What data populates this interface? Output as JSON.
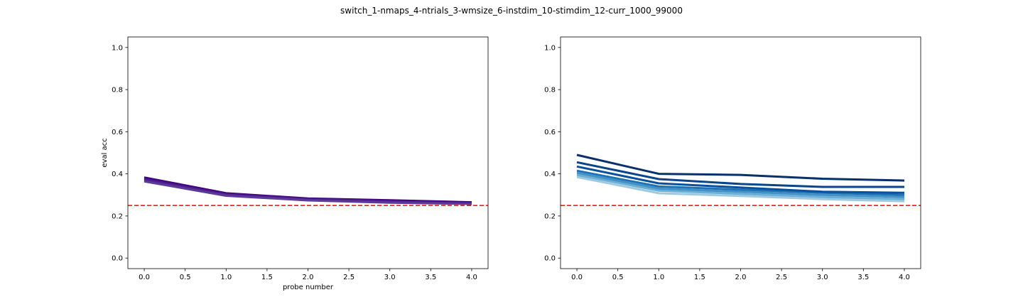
{
  "figure": {
    "title": "switch_1-nmaps_4-ntrials_3-wmsize_6-instdim_10-stimdim_12-curr_1000_99000"
  },
  "chart_data": [
    {
      "type": "line",
      "title": "",
      "xlabel": "probe number",
      "ylabel": "eval acc",
      "xlim": [
        -0.2,
        4.2
      ],
      "ylim": [
        -0.05,
        1.05
      ],
      "xticks": [
        0.0,
        0.5,
        1.0,
        1.5,
        2.0,
        2.5,
        3.0,
        3.5,
        4.0
      ],
      "xtick_labels": [
        "0.0",
        "0.5",
        "1.0",
        "1.5",
        "2.0",
        "2.5",
        "3.0",
        "3.5",
        "4.0"
      ],
      "yticks": [
        0.0,
        0.2,
        0.4,
        0.6,
        0.8,
        1.0
      ],
      "ytick_labels": [
        "0.0",
        "0.2",
        "0.4",
        "0.6",
        "0.8",
        "1.0"
      ],
      "grid": false,
      "reference_line": {
        "y": 0.25,
        "color": "#ff0000",
        "style": "dashed"
      },
      "x": [
        0,
        1,
        2,
        3,
        4
      ],
      "series": [
        {
          "color": "#3f007d",
          "values": [
            0.383,
            0.308,
            0.283,
            0.275,
            0.265
          ]
        },
        {
          "color": "#460c85",
          "values": [
            0.378,
            0.305,
            0.281,
            0.272,
            0.262
          ]
        },
        {
          "color": "#4d1a8d",
          "values": [
            0.373,
            0.302,
            0.279,
            0.269,
            0.26
          ]
        },
        {
          "color": "#542794",
          "values": [
            0.368,
            0.299,
            0.276,
            0.266,
            0.259
          ]
        },
        {
          "color": "#5b3a98",
          "values": [
            0.364,
            0.296,
            0.274,
            0.263,
            0.257
          ]
        }
      ]
    },
    {
      "type": "line",
      "title": "",
      "xlabel": "",
      "ylabel": "",
      "xlim": [
        -0.2,
        4.2
      ],
      "ylim": [
        -0.05,
        1.05
      ],
      "xticks": [
        0.0,
        0.5,
        1.0,
        1.5,
        2.0,
        2.5,
        3.0,
        3.5,
        4.0
      ],
      "xtick_labels": [
        "0.0",
        "0.5",
        "1.0",
        "1.5",
        "2.0",
        "2.5",
        "3.0",
        "3.5",
        "4.0"
      ],
      "yticks": [
        0.0,
        0.2,
        0.4,
        0.6,
        0.8,
        1.0
      ],
      "ytick_labels": [
        "0.0",
        "0.2",
        "0.4",
        "0.6",
        "0.8",
        "1.0"
      ],
      "grid": false,
      "reference_line": {
        "y": 0.25,
        "color": "#ff0000",
        "style": "dashed"
      },
      "x": [
        0,
        1,
        2,
        3,
        4
      ],
      "series": [
        {
          "color": "#9ecae1",
          "values": [
            0.385,
            0.308,
            0.295,
            0.28,
            0.27
          ]
        },
        {
          "color": "#6baed6",
          "values": [
            0.395,
            0.32,
            0.305,
            0.29,
            0.28
          ]
        },
        {
          "color": "#4292c6",
          "values": [
            0.405,
            0.33,
            0.315,
            0.3,
            0.29
          ]
        },
        {
          "color": "#2171b5",
          "values": [
            0.415,
            0.34,
            0.325,
            0.31,
            0.3
          ]
        },
        {
          "color": "#08519c",
          "values": [
            0.435,
            0.355,
            0.335,
            0.315,
            0.31
          ]
        },
        {
          "color": "#08458b",
          "values": [
            0.455,
            0.375,
            0.352,
            0.338,
            0.338
          ]
        },
        {
          "color": "#08306b",
          "values": [
            0.49,
            0.4,
            0.395,
            0.377,
            0.368
          ]
        }
      ]
    }
  ]
}
